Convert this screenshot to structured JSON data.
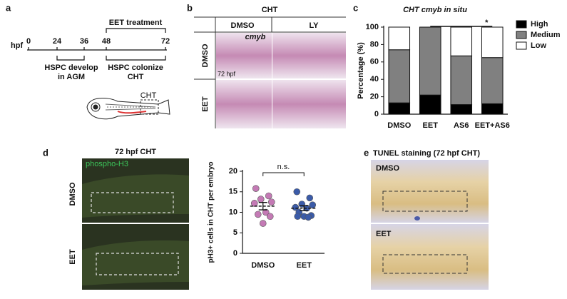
{
  "panels": {
    "a": {
      "letter": "a",
      "axis_label": "hpf",
      "ticks": [
        "0",
        "24",
        "36",
        "48",
        "72"
      ],
      "treatment": "EET treatment",
      "stage1": [
        "HSPC develop",
        "in AGM"
      ],
      "stage2": [
        "HSPC colonize",
        "CHT"
      ],
      "region": "CHT"
    },
    "b": {
      "letter": "b",
      "title": "CHT",
      "columns": [
        "DMSO",
        "LY"
      ],
      "rows": [
        "DMSO",
        "EET"
      ],
      "gene": "cmyb",
      "time": "72 hpf"
    },
    "c": {
      "letter": "c"
    },
    "d": {
      "letter": "d",
      "title": "72 hpf CHT",
      "stain": "phospho-H3",
      "rows": [
        "DMSO",
        "EET"
      ]
    },
    "e": {
      "letter": "e",
      "title": "TUNEL staining (72 hpf CHT)",
      "rows": [
        "DMSO",
        "EET"
      ]
    }
  },
  "chart_data": [
    {
      "type": "bar",
      "stacked": true,
      "title": "CHT cmyb in situ",
      "y_label": "Percentage (%)",
      "categories": [
        "DMSO",
        "EET",
        "AS6",
        "EET+AS6"
      ],
      "series": [
        {
          "name": "High",
          "color": "#000000",
          "values": [
            13,
            22,
            11,
            12
          ]
        },
        {
          "name": "Medium",
          "color": "#808080",
          "values": [
            61,
            78,
            56,
            53
          ]
        },
        {
          "name": "Low",
          "color": "#ffffff",
          "values": [
            26,
            0,
            33,
            35
          ]
        }
      ],
      "ylim": [
        0,
        100
      ],
      "yticks": [
        0,
        20,
        40,
        60,
        80,
        100
      ],
      "legend": "right",
      "annotation": "*"
    },
    {
      "type": "strip",
      "y_label": "pH3+ cells in CHT per embryo",
      "categories": [
        "DMSO",
        "EET"
      ],
      "series": [
        {
          "name": "DMSO",
          "color": "#c47ab5",
          "values": [
            15.8,
            14.0,
            13.2,
            12.5,
            12.2,
            10.0,
            9.5,
            9.0,
            7.3
          ],
          "mean": 11.5,
          "error": 0.9
        },
        {
          "name": "EET",
          "color": "#3b5ba8",
          "values": [
            15.0,
            13.5,
            12.0,
            11.8,
            11.2,
            11.0,
            10.0,
            9.2,
            9.0,
            9.0,
            8.8
          ],
          "mean": 11.0,
          "error": 0.6
        }
      ],
      "ylim": [
        0,
        20
      ],
      "yticks": [
        0,
        5,
        10,
        15,
        20
      ],
      "annotation": "n.s."
    }
  ]
}
